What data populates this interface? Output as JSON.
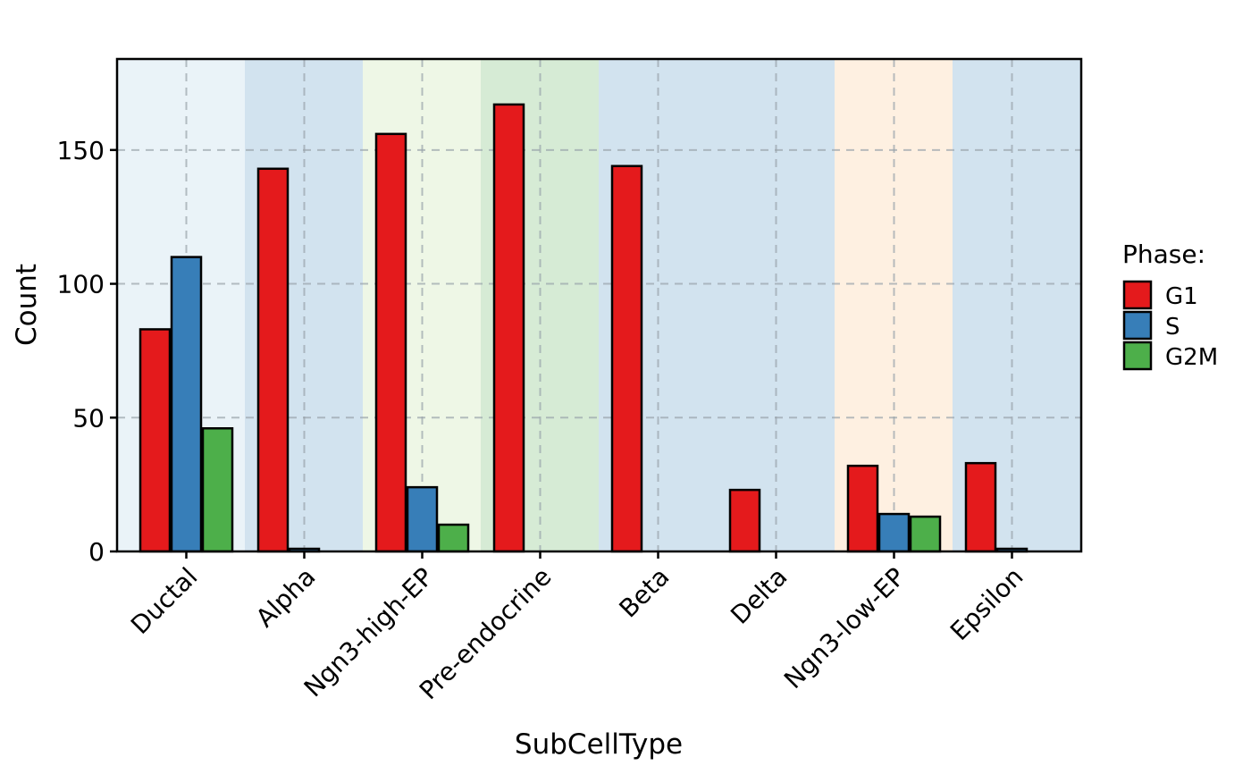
{
  "chart_data": {
    "type": "bar",
    "xlabel": "SubCellType",
    "ylabel": "Count",
    "ylim": [
      0,
      184
    ],
    "yticks": [
      0,
      50,
      100,
      150
    ],
    "grid": true,
    "legend_position": "right",
    "legend_title": "Phase:",
    "categories": [
      "Ductal",
      "Alpha",
      "Ngn3-high-EP",
      "Pre-endocrine",
      "Beta",
      "Delta",
      "Ngn3-low-EP",
      "Epsilon"
    ],
    "category_backgrounds": [
      "#EAF3F8",
      "#D2E3EF",
      "#EEF7E6",
      "#D6EBD5",
      "#D2E3EF",
      "#D2E3EF",
      "#FEF0E1",
      "#D2E3EF"
    ],
    "series": [
      {
        "name": "G1",
        "color": "#E41A1C",
        "values": [
          83,
          143,
          156,
          167,
          144,
          23,
          32,
          33
        ]
      },
      {
        "name": "S",
        "color": "#377EB8",
        "values": [
          110,
          1,
          24,
          0,
          0,
          0,
          14,
          1
        ]
      },
      {
        "name": "G2M",
        "color": "#4DAF4A",
        "values": [
          46,
          0,
          10,
          0,
          0,
          0,
          13,
          0
        ]
      }
    ]
  }
}
